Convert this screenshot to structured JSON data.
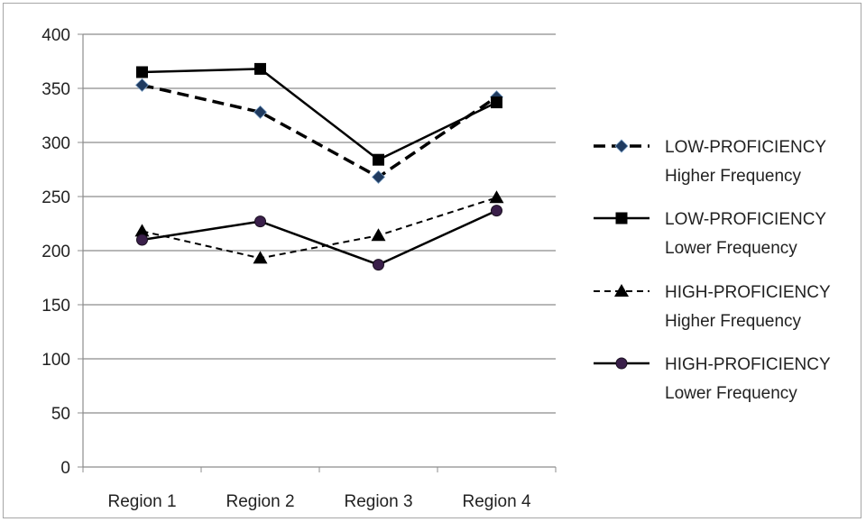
{
  "chart_data": {
    "type": "line",
    "title": "",
    "xlabel": "",
    "ylabel": "",
    "categories": [
      "Region 1",
      "Region 2",
      "Region 3",
      "Region 4"
    ],
    "ylim": [
      0,
      400
    ],
    "yticks": [
      0,
      50,
      100,
      150,
      200,
      250,
      300,
      350,
      400
    ],
    "grid": true,
    "legend_position": "right",
    "series": [
      {
        "name_lines": [
          "LOW-PROFICIENCY",
          "Higher Frequency"
        ],
        "values": [
          353,
          328,
          268,
          342
        ],
        "marker": "diamond",
        "line_style": "bold-dashed",
        "line_color": "#000000",
        "marker_color": "#1f3a5f"
      },
      {
        "name_lines": [
          "LOW-PROFICIENCY",
          "Lower Frequency"
        ],
        "values": [
          365,
          368,
          284,
          337
        ],
        "marker": "square",
        "line_style": "solid",
        "line_color": "#000000",
        "marker_color": "#000000"
      },
      {
        "name_lines": [
          "HIGH-PROFICIENCY",
          "Higher Frequency"
        ],
        "values": [
          218,
          193,
          214,
          249
        ],
        "marker": "triangle",
        "line_style": "dashed",
        "line_color": "#000000",
        "marker_color": "#000000"
      },
      {
        "name_lines": [
          "HIGH-PROFICIENCY",
          "Lower Frequency"
        ],
        "values": [
          210,
          227,
          187,
          237
        ],
        "marker": "circle",
        "line_style": "solid",
        "line_color": "#000000",
        "marker_color": "#3a1f4a"
      }
    ]
  }
}
